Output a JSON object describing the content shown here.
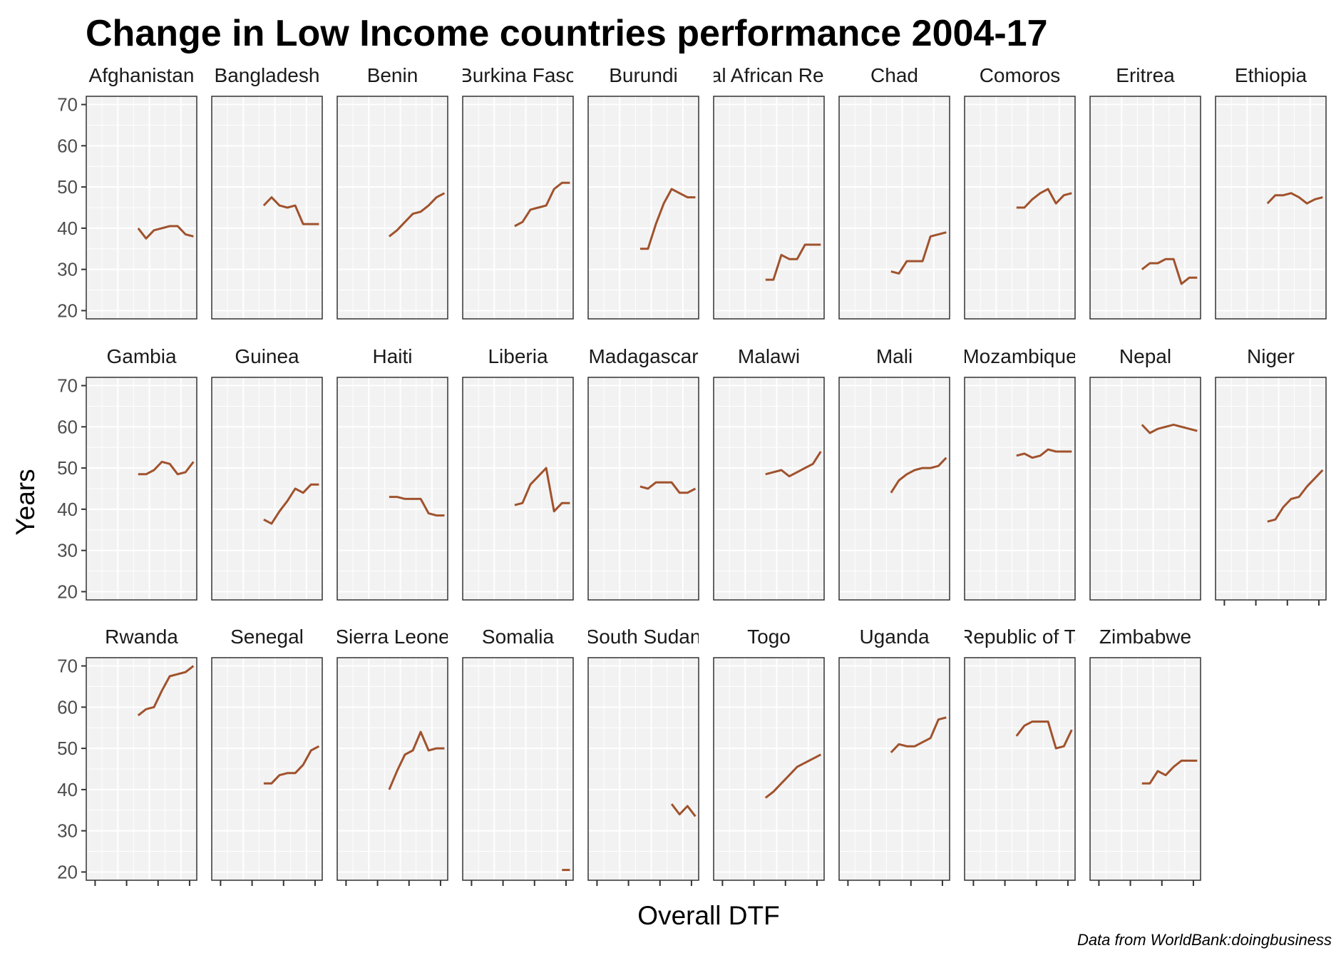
{
  "chart_data": {
    "type": "line",
    "title": "Change in Low Income countries performance 2004-17",
    "xlabel": "Overall DTF",
    "ylabel": "Years",
    "caption": "Data from WorldBank:doingbusiness",
    "ylim": [
      18,
      72
    ],
    "yticks": [
      20,
      30,
      40,
      50,
      60,
      70
    ],
    "grid": true,
    "line_color": "#A0522D",
    "panel_bg": "#F2F2F2",
    "panels": [
      {
        "name": "Afghanistan",
        "values": [
          40,
          37.5,
          39.5,
          40,
          40.5,
          40.5,
          38.5,
          38
        ]
      },
      {
        "name": "Bangladesh",
        "values": [
          45.5,
          47.5,
          45.5,
          45,
          45.5,
          41,
          41,
          41
        ]
      },
      {
        "name": "Benin",
        "values": [
          38,
          39.5,
          41.5,
          43.5,
          44,
          45.5,
          47.5,
          48.5
        ]
      },
      {
        "name": "Burkina Faso",
        "values": [
          40.5,
          41.5,
          44.5,
          45,
          45.5,
          49.5,
          51,
          51
        ]
      },
      {
        "name": "Burundi",
        "values": [
          35,
          35,
          41,
          46,
          49.5,
          48.5,
          47.5,
          47.5
        ]
      },
      {
        "name": "Central African Republic",
        "values": [
          27.5,
          27.5,
          33.5,
          32.5,
          32.5,
          36,
          36,
          36
        ]
      },
      {
        "name": "Chad",
        "values": [
          29.5,
          29,
          32,
          32,
          32,
          38,
          38.5,
          39
        ]
      },
      {
        "name": "Comoros",
        "values": [
          45,
          45,
          47,
          48.5,
          49.5,
          46,
          48,
          48.5
        ]
      },
      {
        "name": "Eritrea",
        "values": [
          30,
          31.5,
          31.5,
          32.5,
          32.5,
          26.5,
          28,
          28
        ]
      },
      {
        "name": "Ethiopia",
        "values": [
          46,
          48,
          48,
          48.5,
          47.5,
          46,
          47,
          47.5
        ]
      },
      {
        "name": "Gambia",
        "values": [
          48.5,
          48.5,
          49.5,
          51.5,
          51,
          48.5,
          49,
          51.5
        ]
      },
      {
        "name": "Guinea",
        "values": [
          37.5,
          36.5,
          39.5,
          42,
          45,
          44,
          46,
          46
        ]
      },
      {
        "name": "Haiti",
        "values": [
          43,
          43,
          42.5,
          42.5,
          42.5,
          39,
          38.5,
          38.5
        ]
      },
      {
        "name": "Liberia",
        "values": [
          41,
          41.5,
          46,
          48,
          50,
          39.5,
          41.5,
          41.5
        ]
      },
      {
        "name": "Madagascar",
        "values": [
          45.5,
          45,
          46.5,
          46.5,
          46.5,
          44,
          44,
          45
        ]
      },
      {
        "name": "Malawi",
        "values": [
          48.5,
          49,
          49.5,
          48,
          49,
          50,
          51,
          54
        ]
      },
      {
        "name": "Mali",
        "values": [
          44,
          47,
          48.5,
          49.5,
          50,
          50,
          50.5,
          52.5
        ]
      },
      {
        "name": "Mozambique",
        "values": [
          53,
          53.5,
          52.5,
          53,
          54.5,
          54,
          54,
          54
        ]
      },
      {
        "name": "Nepal",
        "values": [
          60.5,
          58.5,
          59.5,
          60,
          60.5,
          60,
          59.5,
          59
        ]
      },
      {
        "name": "Niger",
        "values": [
          37,
          37.5,
          40.5,
          42.5,
          43,
          45.5,
          47.5,
          49.5
        ]
      },
      {
        "name": "Rwanda",
        "values": [
          58,
          59.5,
          60,
          64,
          67.5,
          68,
          68.5,
          70
        ]
      },
      {
        "name": "Senegal",
        "values": [
          41.5,
          41.5,
          43.5,
          44,
          44,
          46,
          49.5,
          50.5
        ]
      },
      {
        "name": "Sierra Leone",
        "values": [
          40,
          44.5,
          48.5,
          49.5,
          54,
          49.5,
          50,
          50
        ]
      },
      {
        "name": "Somalia",
        "values": [
          null,
          null,
          null,
          null,
          null,
          null,
          20.5,
          20.5
        ]
      },
      {
        "name": "South Sudan",
        "values": [
          null,
          null,
          null,
          null,
          36.5,
          34,
          36,
          33.5
        ]
      },
      {
        "name": "Togo",
        "values": [
          38,
          39.5,
          41.5,
          43.5,
          45.5,
          46.5,
          47.5,
          48.5
        ]
      },
      {
        "name": "Uganda",
        "values": [
          49,
          51,
          50.5,
          50.5,
          51.5,
          52.5,
          57,
          57.5
        ]
      },
      {
        "name": "United Republic of Tanzania",
        "values": [
          53,
          55.5,
          56.5,
          56.5,
          56.5,
          50,
          50.5,
          54.5
        ]
      },
      {
        "name": "Zimbabwe",
        "values": [
          41.5,
          41.5,
          44.5,
          43.5,
          45.5,
          47,
          47,
          47
        ]
      }
    ]
  }
}
